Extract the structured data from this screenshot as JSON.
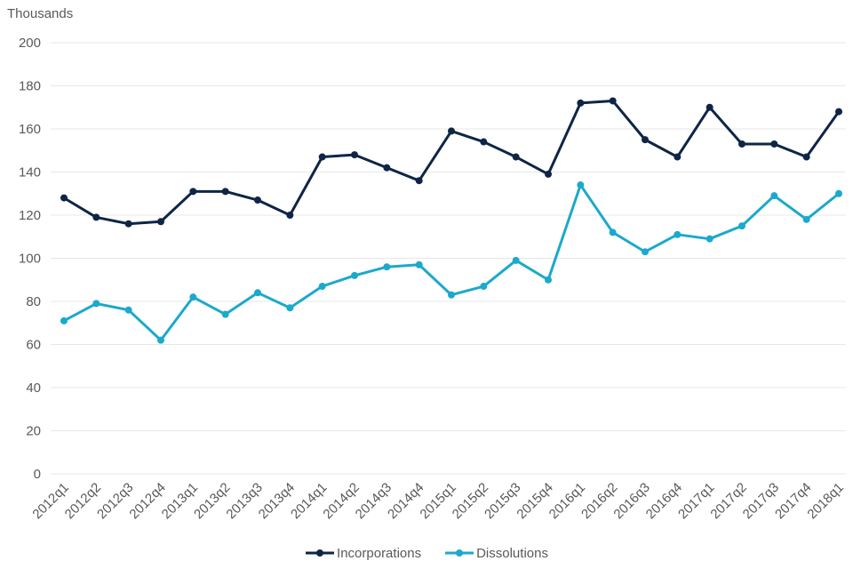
{
  "chart_data": {
    "type": "line",
    "title": "Thousands",
    "categories": [
      "2012q1",
      "2012q2",
      "2012q3",
      "2012q4",
      "2013q1",
      "2013q2",
      "2013q3",
      "2013q4",
      "2014q1",
      "2014q2",
      "2014q3",
      "2014q4",
      "2015q1",
      "2015q2",
      "2015q3",
      "2015q4",
      "2016q1",
      "2016q2",
      "2016q3",
      "2016q4",
      "2017q1",
      "2017q2",
      "2017q3",
      "2017q4",
      "2018q1"
    ],
    "series": [
      {
        "name": "Incorporations",
        "color": "#0e2545",
        "values": [
          128,
          119,
          116,
          117,
          131,
          131,
          127,
          120,
          147,
          148,
          142,
          136,
          159,
          154,
          147,
          139,
          172,
          173,
          155,
          147,
          170,
          153,
          153,
          147,
          168
        ]
      },
      {
        "name": "Dissolutions",
        "color": "#1ba9cc",
        "values": [
          71,
          79,
          76,
          62,
          82,
          74,
          84,
          77,
          87,
          92,
          96,
          97,
          83,
          87,
          99,
          90,
          134,
          112,
          103,
          111,
          109,
          115,
          129,
          118,
          130
        ]
      }
    ],
    "ylabel": "Thousands",
    "xlabel": "",
    "ylim": [
      0,
      200
    ],
    "yticks": [
      0,
      20,
      40,
      60,
      80,
      100,
      120,
      140,
      160,
      180,
      200
    ],
    "grid": true,
    "legend_position": "bottom"
  },
  "colors": {
    "grid": "#e7e7e7",
    "axis_text": "#595959",
    "background": "#ffffff"
  }
}
